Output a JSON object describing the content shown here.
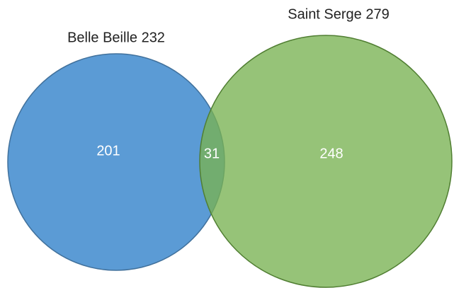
{
  "sets": [
    {
      "label": "Belle Beille 232"
    },
    {
      "label": "Saint Serge 279"
    }
  ],
  "regions": {
    "only_first": 201,
    "both": 31,
    "only_second": 248
  }
}
